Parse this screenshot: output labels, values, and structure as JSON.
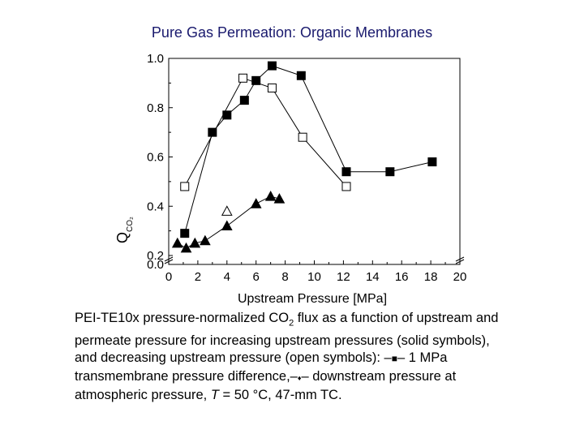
{
  "slide_title": "Pure Gas Permeation:  Organic Membranes",
  "chart_data": {
    "type": "scatter",
    "xlabel": "Upstream Pressure [MPa]",
    "ylabel_rotated": "Q",
    "ylabel_sub": "CO₂",
    "xlim": [
      0,
      20
    ],
    "ylim": [
      0.0,
      1.0
    ],
    "axis_break": true,
    "x_ticks": [
      "0",
      "2",
      "4",
      "6",
      "8",
      "10",
      "12",
      "14",
      "16",
      "18",
      "20"
    ],
    "y_ticks": [
      "0.0",
      "0.2",
      "0.4",
      "0.6",
      "0.8",
      "1.0"
    ],
    "series": [
      {
        "marker": "filled-square",
        "x": [
          1.1,
          3.0,
          4.0,
          5.2,
          6.0,
          7.1,
          9.1,
          12.2,
          15.2,
          18.1
        ],
        "y": [
          0.29,
          0.7,
          0.77,
          0.83,
          0.91,
          0.97,
          0.93,
          0.54,
          0.54,
          0.58
        ]
      },
      {
        "marker": "open-square",
        "x": [
          1.1,
          5.1,
          7.1,
          9.2,
          12.2
        ],
        "y": [
          0.48,
          0.92,
          0.88,
          0.68,
          0.48
        ]
      },
      {
        "marker": "filled-triangle",
        "x": [
          0.6,
          1.2,
          1.8,
          2.5,
          4.0,
          6.0,
          7.0,
          7.6
        ],
        "y": [
          0.25,
          0.23,
          0.25,
          0.26,
          0.32,
          0.41,
          0.44,
          0.43
        ]
      },
      {
        "marker": "open-triangle",
        "x": [
          4.0
        ],
        "y": [
          0.38
        ]
      }
    ]
  },
  "caption": {
    "line1_pre": "PEI-TE10x pressure-normalized CO",
    "line1_sub": "2",
    "line1_post": " flux as a function of upstream and",
    "line2": "permeate pressure for increasing upstream pressures (solid symbols),",
    "line3_pre": "and decreasing upstream pressure (open symbols): –",
    "line3_sym": "■",
    "line3_post": "– 1 MPa",
    "line4_pre": "transmembrane pressure difference,–",
    "line4_sym": "♦",
    "line4_post": "– downstream pressure at",
    "line5_pre": "atmospheric pressure, ",
    "line5_T": "T",
    "line5_post": " = 50 °C, 47-mm TC."
  }
}
